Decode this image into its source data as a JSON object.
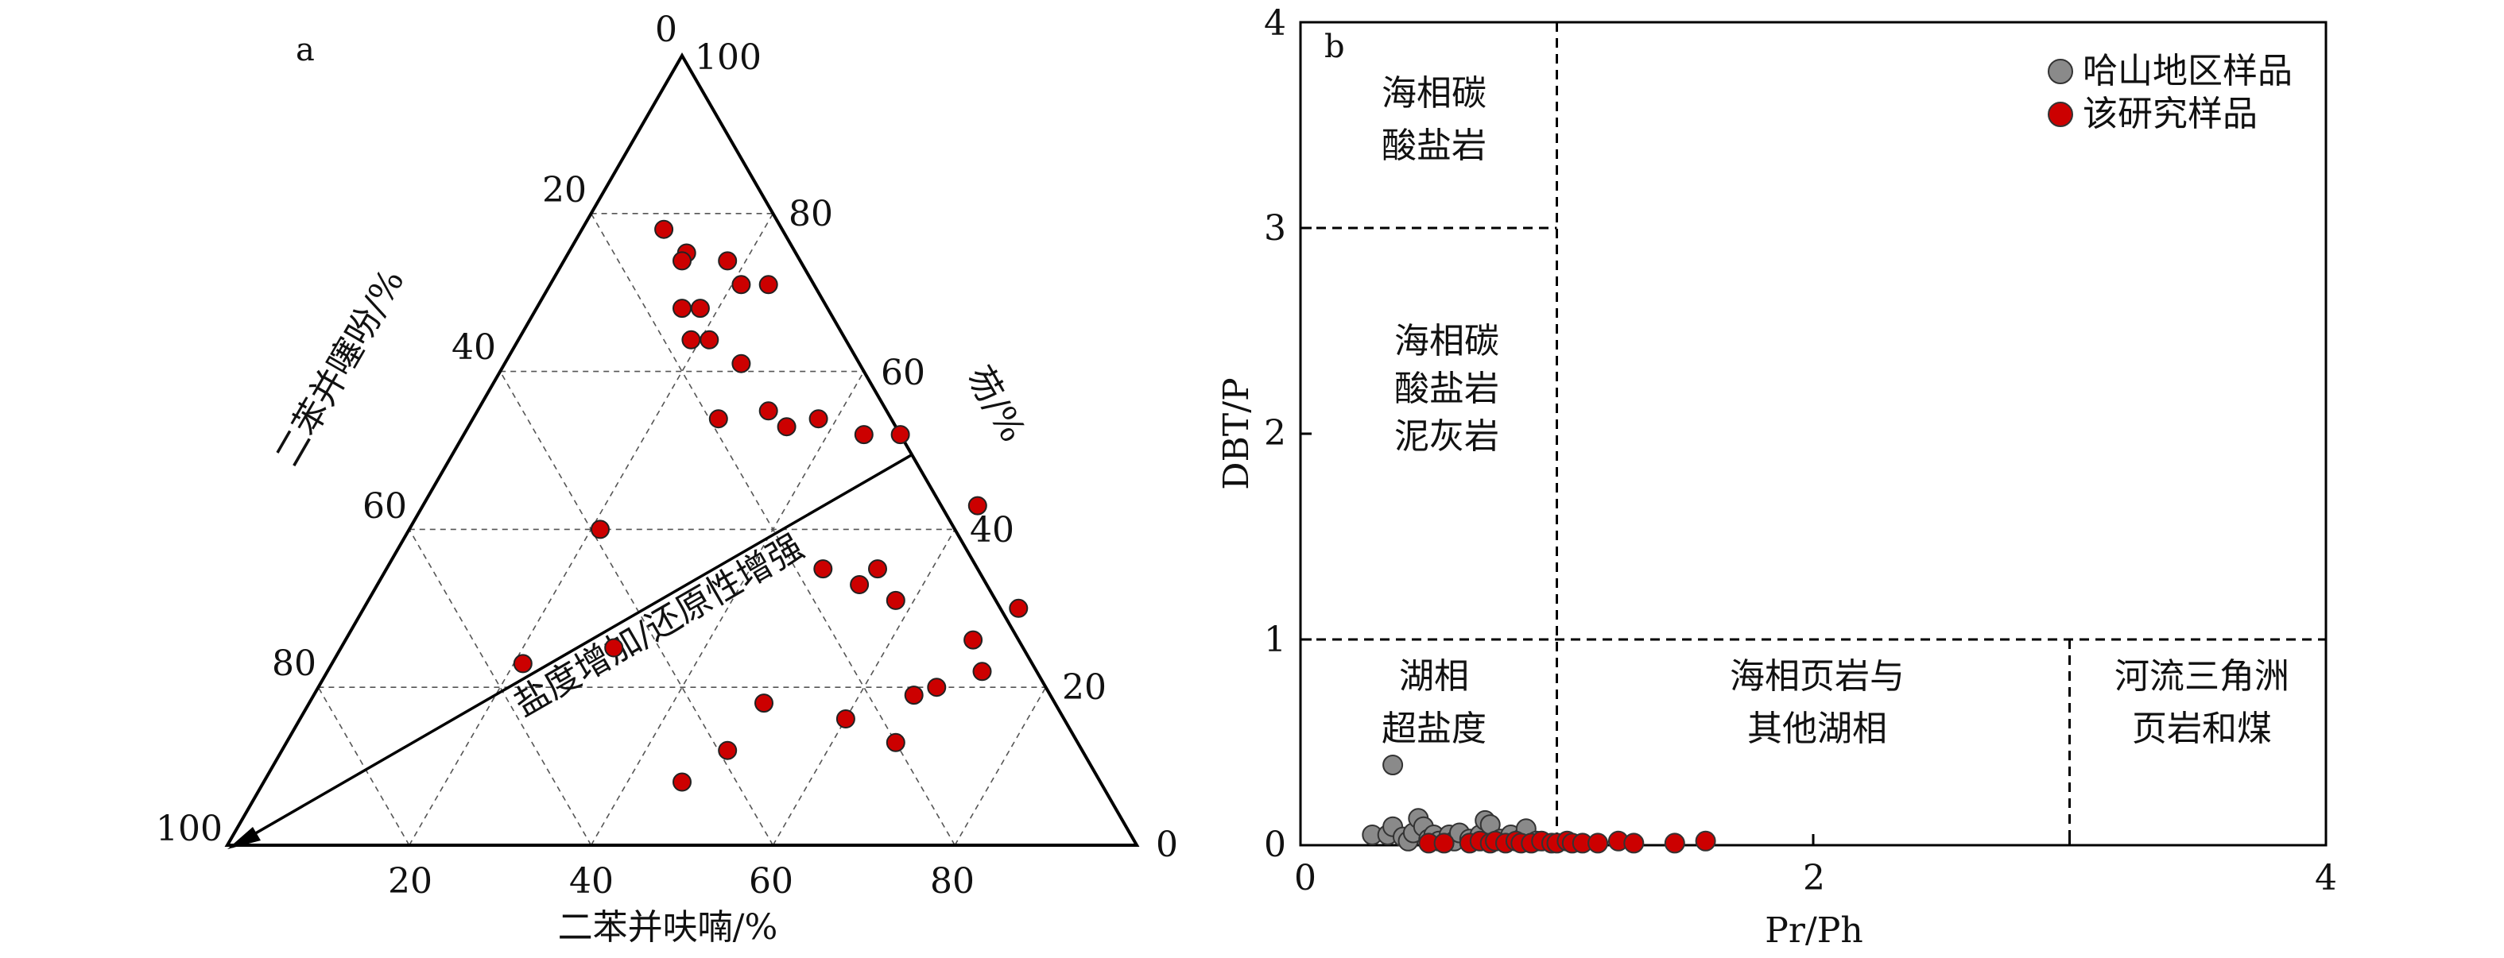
{
  "colors": {
    "red_point": "#cc0000",
    "gray_point": "#8a8a8a",
    "line": "#000000",
    "grid": "#555555"
  },
  "chart_data": [
    {
      "type": "scatter",
      "subtype": "ternary",
      "panel_label": "a",
      "apex_labels": {
        "top_0": "0",
        "top_100": "100",
        "left_100": "100",
        "right_0": "0"
      },
      "axes": {
        "bottom": {
          "label": "二苯并呋喃/%",
          "ticks": [
            "20",
            "40",
            "60",
            "80"
          ]
        },
        "left": {
          "label": "二苯并噻吩/%",
          "ticks": [
            "20",
            "40",
            "60",
            "80"
          ]
        },
        "right": {
          "label": "芴/%",
          "ticks": [
            "80",
            "60",
            "40",
            "20"
          ]
        }
      },
      "arrow_annotation": "盐度增加/还原性增强",
      "points_fluorene_dbf": [
        [
          78,
          9
        ],
        [
          75,
          13
        ],
        [
          74,
          18
        ],
        [
          74,
          13
        ],
        [
          71,
          21
        ],
        [
          71,
          24
        ],
        [
          68,
          16
        ],
        [
          68,
          18
        ],
        [
          64,
          19
        ],
        [
          64,
          21
        ],
        [
          61,
          26
        ],
        [
          55,
          32
        ],
        [
          53,
          35
        ],
        [
          54,
          38
        ],
        [
          54,
          27
        ],
        [
          52,
          44
        ],
        [
          52,
          48
        ],
        [
          43,
          61
        ],
        [
          40,
          21
        ],
        [
          35,
          48
        ],
        [
          35,
          54
        ],
        [
          33,
          53
        ],
        [
          31,
          58
        ],
        [
          30,
          72
        ],
        [
          26,
          69
        ],
        [
          25,
          30
        ],
        [
          23,
          21
        ],
        [
          22,
          72
        ],
        [
          20,
          68
        ],
        [
          19,
          66
        ],
        [
          18,
          50
        ],
        [
          16,
          60
        ],
        [
          13,
          67
        ],
        [
          12,
          49
        ],
        [
          8,
          46
        ]
      ]
    },
    {
      "type": "scatter",
      "panel_label": "b",
      "xlabel": "Pr/Ph",
      "ylabel": "DBT/P",
      "xlim": [
        0,
        4
      ],
      "ylim": [
        0,
        4
      ],
      "x_ticks": [
        "0",
        "2",
        "4"
      ],
      "y_ticks": [
        "0",
        "1",
        "2",
        "3",
        "4"
      ],
      "region_labels": {
        "marine_carbonate": [
          "海相碳",
          "酸盐岩"
        ],
        "marine_carbonate_marl": [
          "海相碳",
          "酸盐岩",
          "泥灰岩"
        ],
        "lacustrine_hypersaline": [
          "湖相",
          "超盐度"
        ],
        "marine_shale_lacustrine": [
          "海相页岩与",
          "其他湖相"
        ],
        "fluvial_delta": [
          "河流三角洲",
          "页岩和煤"
        ]
      },
      "series": [
        {
          "name": "哈山地区样品",
          "color": "#8a8a8a",
          "points": [
            [
              0.36,
              0.39
            ],
            [
              0.28,
              0.05
            ],
            [
              0.34,
              0.05
            ],
            [
              0.36,
              0.09
            ],
            [
              0.4,
              0.04
            ],
            [
              0.42,
              0.02
            ],
            [
              0.44,
              0.06
            ],
            [
              0.46,
              0.13
            ],
            [
              0.48,
              0.09
            ],
            [
              0.5,
              0.03
            ],
            [
              0.52,
              0.05
            ],
            [
              0.54,
              0.02
            ],
            [
              0.58,
              0.05
            ],
            [
              0.6,
              0.02
            ],
            [
              0.62,
              0.06
            ],
            [
              0.66,
              0.03
            ],
            [
              0.7,
              0.05
            ],
            [
              0.72,
              0.12
            ],
            [
              0.74,
              0.1
            ],
            [
              0.78,
              0.03
            ],
            [
              0.82,
              0.05
            ],
            [
              0.86,
              0.03
            ],
            [
              0.88,
              0.08
            ],
            [
              0.92,
              0.02
            ]
          ]
        },
        {
          "name": "该研究样品",
          "color": "#cc0000",
          "points": [
            [
              0.5,
              0.01
            ],
            [
              0.56,
              0.01
            ],
            [
              0.66,
              0.01
            ],
            [
              0.7,
              0.02
            ],
            [
              0.74,
              0.01
            ],
            [
              0.76,
              0.02
            ],
            [
              0.8,
              0.01
            ],
            [
              0.84,
              0.02
            ],
            [
              0.86,
              0.01
            ],
            [
              0.9,
              0.01
            ],
            [
              0.94,
              0.02
            ],
            [
              0.98,
              0.01
            ],
            [
              1.0,
              0.01
            ],
            [
              1.04,
              0.02
            ],
            [
              1.06,
              0.01
            ],
            [
              1.1,
              0.01
            ],
            [
              1.16,
              0.01
            ],
            [
              1.24,
              0.02
            ],
            [
              1.3,
              0.01
            ],
            [
              1.46,
              0.01
            ],
            [
              1.58,
              0.02
            ]
          ]
        }
      ]
    }
  ]
}
